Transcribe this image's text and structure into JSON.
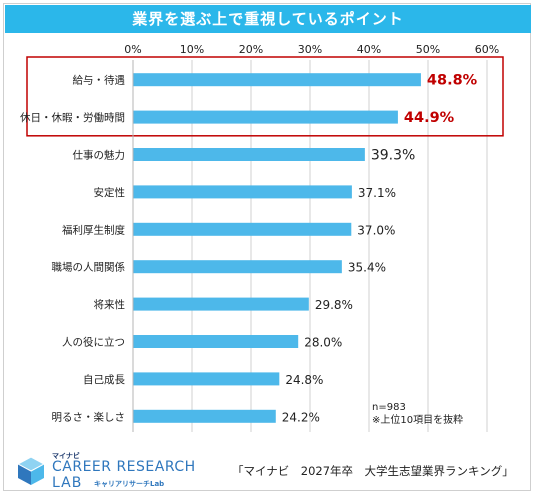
{
  "header": {
    "title": "業界を選ぶ上で重視しているポイント"
  },
  "colors": {
    "bar": "#4db8ea",
    "banner": "#2bb7ea",
    "highlight": "#c00000",
    "grid": "#d0d0d0"
  },
  "chart_data": {
    "type": "bar",
    "orientation": "horizontal",
    "title": "業界を選ぶ上で重視しているポイント",
    "categories": [
      "給与・待遇",
      "休日・休暇・労働時間",
      "仕事の魅力",
      "安定性",
      "福利厚生制度",
      "職場の人間関係",
      "将来性",
      "人の役に立つ",
      "自己成長",
      "明るさ・楽しさ"
    ],
    "values": [
      48.8,
      44.9,
      39.3,
      37.1,
      37.0,
      35.4,
      29.8,
      28.0,
      24.8,
      24.2
    ],
    "value_labels": [
      "48.8%",
      "44.9%",
      "39.3%",
      "37.1%",
      "37.0%",
      "35.4%",
      "29.8%",
      "28.0%",
      "24.8%",
      "24.2%"
    ],
    "highlighted": [
      0,
      1
    ],
    "x_ticks": [
      "0%",
      "10%",
      "20%",
      "30%",
      "40%",
      "50%",
      "60%"
    ],
    "xlim": [
      0,
      60
    ],
    "grid": true
  },
  "notes": {
    "sample": "n=983",
    "footnote": "※上位10項目を抜粋"
  },
  "source": "「マイナビ　2027年卒　大学生志望業界ランキング」",
  "logo": {
    "small": "マイナビ",
    "main": "CAREER RESEARCH",
    "lab": "LAB",
    "sub": "キャリアリサーチLab"
  }
}
